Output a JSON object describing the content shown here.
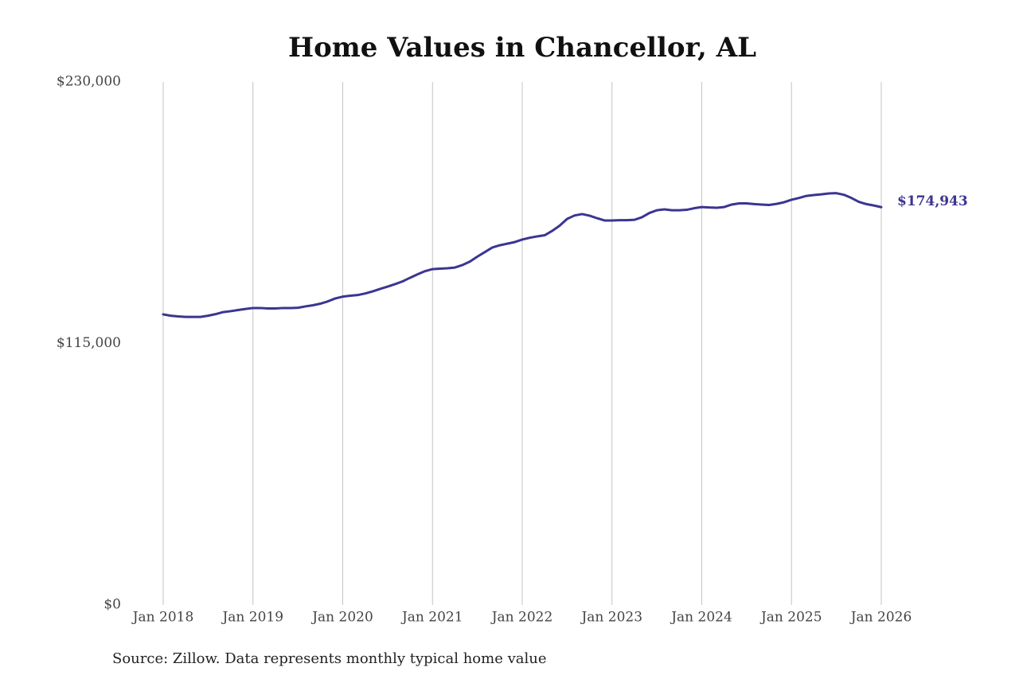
{
  "chart_data": {
    "type": "line",
    "title": "Home Values in Chancellor, AL",
    "source": "Source: Zillow. Data represents monthly typical home value",
    "x": [
      "2018-01",
      "2018-02",
      "2018-03",
      "2018-04",
      "2018-05",
      "2018-06",
      "2018-07",
      "2018-08",
      "2018-09",
      "2018-10",
      "2018-11",
      "2018-12",
      "2019-01",
      "2019-02",
      "2019-03",
      "2019-04",
      "2019-05",
      "2019-06",
      "2019-07",
      "2019-08",
      "2019-09",
      "2019-10",
      "2019-11",
      "2019-12",
      "2020-01",
      "2020-02",
      "2020-03",
      "2020-04",
      "2020-05",
      "2020-06",
      "2020-07",
      "2020-08",
      "2020-09",
      "2020-10",
      "2020-11",
      "2020-12",
      "2021-01",
      "2021-02",
      "2021-03",
      "2021-04",
      "2021-05",
      "2021-06",
      "2021-07",
      "2021-08",
      "2021-09",
      "2021-10",
      "2021-11",
      "2021-12",
      "2022-01",
      "2022-02",
      "2022-03",
      "2022-04",
      "2022-05",
      "2022-06",
      "2022-07",
      "2022-08",
      "2022-09",
      "2022-10",
      "2022-11",
      "2022-12",
      "2023-01",
      "2023-02",
      "2023-03",
      "2023-04",
      "2023-05",
      "2023-06",
      "2023-07",
      "2023-08",
      "2023-09",
      "2023-10",
      "2023-11",
      "2023-12",
      "2024-01",
      "2024-02",
      "2024-03",
      "2024-04",
      "2024-05",
      "2024-06",
      "2024-07",
      "2024-08",
      "2024-09",
      "2024-10",
      "2024-11",
      "2024-12",
      "2025-01",
      "2025-02",
      "2025-03",
      "2025-04",
      "2025-05",
      "2025-06",
      "2025-07",
      "2025-08",
      "2025-09",
      "2025-10",
      "2025-11",
      "2025-12",
      "2026-01"
    ],
    "series": [
      {
        "color": "#3b3591",
        "values": [
          127800,
          127200,
          126900,
          126700,
          126700,
          126700,
          127200,
          127900,
          128800,
          129200,
          129700,
          130200,
          130600,
          130600,
          130400,
          130400,
          130600,
          130600,
          130700,
          131300,
          131800,
          132500,
          133500,
          134800,
          135600,
          136000,
          136300,
          137000,
          137900,
          139000,
          140000,
          141100,
          142300,
          143900,
          145400,
          146800,
          147700,
          147900,
          148100,
          148400,
          149500,
          151000,
          153200,
          155200,
          157200,
          158200,
          158900,
          159600,
          160700,
          161500,
          162100,
          162600,
          164500,
          166800,
          169800,
          171300,
          171900,
          171200,
          170100,
          169100,
          169100,
          169200,
          169200,
          169400,
          170500,
          172400,
          173600,
          174000,
          173600,
          173600,
          173800,
          174500,
          175000,
          174800,
          174700,
          175000,
          176100,
          176600,
          176600,
          176300,
          176100,
          175900,
          176400,
          177100,
          178200,
          179000,
          179900,
          180300,
          180600,
          181000,
          181100,
          180400,
          179000,
          177300,
          176300,
          175700,
          174943
        ],
        "value_labels": [
          null,
          null,
          null,
          null,
          null,
          null,
          null,
          null,
          null,
          null,
          null,
          null,
          null,
          null,
          null,
          null,
          null,
          null,
          null,
          null,
          null,
          null,
          null,
          null,
          null,
          null,
          null,
          null,
          null,
          null,
          null,
          null,
          null,
          null,
          null,
          null,
          null,
          null,
          null,
          null,
          null,
          null,
          null,
          null,
          null,
          null,
          null,
          null,
          null,
          null,
          null,
          null,
          null,
          null,
          null,
          null,
          null,
          null,
          null,
          null,
          null,
          null,
          null,
          null,
          null,
          null,
          null,
          null,
          null,
          null,
          null,
          null,
          null,
          null,
          null,
          null,
          null,
          null,
          null,
          null,
          null,
          null,
          null,
          null,
          null,
          null,
          null,
          null,
          null,
          null,
          null,
          null,
          null,
          null,
          null,
          null,
          "$174,943"
        ]
      }
    ],
    "xlim": [
      "2018-01",
      "2026-01"
    ],
    "xticks": [
      {
        "value": "2018-01",
        "label": "Jan 2018"
      },
      {
        "value": "2019-01",
        "label": "Jan 2019"
      },
      {
        "value": "2020-01",
        "label": "Jan 2020"
      },
      {
        "value": "2021-01",
        "label": "Jan 2021"
      },
      {
        "value": "2022-01",
        "label": "Jan 2022"
      },
      {
        "value": "2023-01",
        "label": "Jan 2023"
      },
      {
        "value": "2024-01",
        "label": "Jan 2024"
      },
      {
        "value": "2025-01",
        "label": "Jan 2025"
      },
      {
        "value": "2026-01",
        "label": "Jan 2026"
      }
    ],
    "ylim": [
      0,
      230000
    ],
    "yticks": [
      {
        "value": 0,
        "label": "$0"
      },
      {
        "value": 115000,
        "label": "$115,000"
      },
      {
        "value": 230000,
        "label": "$230,000"
      }
    ],
    "grid": "x"
  }
}
